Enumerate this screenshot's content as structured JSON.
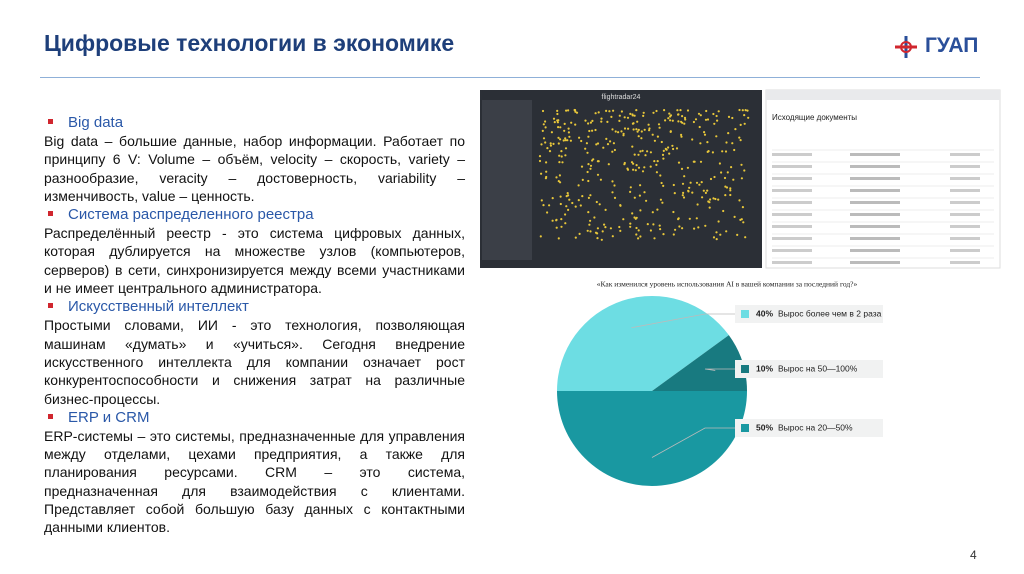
{
  "header": {
    "title": "Цифровые технологии в экономике",
    "logo": "ГУАП"
  },
  "sections": [
    {
      "heading": "Big data",
      "text": "Big data – большие данные, набор информации. Работает по принципу 6 V: Volume – объём, velocity – скорость, variety – разнообразие, veracity – достоверность, variability – изменчивость, value – ценность."
    },
    {
      "heading": "Система распределенного реестра",
      "text": "Распределённый реестр - это система цифровых данных, которая дублируется на множестве узлов (компьютеров, серверов) в сети, синхронизируется между всеми участниками и не имеет центрального администратора."
    },
    {
      "heading": "Искусственный интеллект",
      "text": "Простыми словами, ИИ - это технология, позволяющая машинам «думать» и «учиться». Сегодня внедрение искусственного интеллекта для компании означает рост конкурентоспособности и снижения затрат на различные бизнес-процессы."
    },
    {
      "heading": "ERP и CRM",
      "text": "ERP-системы – это системы, предназначенные для управления между отделами, цехами предприятия, а также для планирования ресурсами. CRM – это система, предназначенная для взаимодействия с клиентами. Представляет собой большую базу данных с контактными данными клиентов."
    }
  ],
  "screenshots": [
    {
      "title": "flightradar24"
    },
    {
      "title": "Исходящие документы"
    }
  ],
  "pie_chart": {
    "type": "pie",
    "title": "«Как изменился уровень использования AI в вашей компании за последний год?»",
    "categories": [
      "Вырос более чем в 2 раза",
      "Вырос на 50—100%",
      "Вырос на 20—50%"
    ],
    "values": [
      40,
      10,
      50
    ],
    "value_labels": [
      "40%",
      "10%",
      "50%"
    ],
    "colors": [
      "#6ddde3",
      "#187a80",
      "#1998a1"
    ]
  },
  "page_number": "4"
}
